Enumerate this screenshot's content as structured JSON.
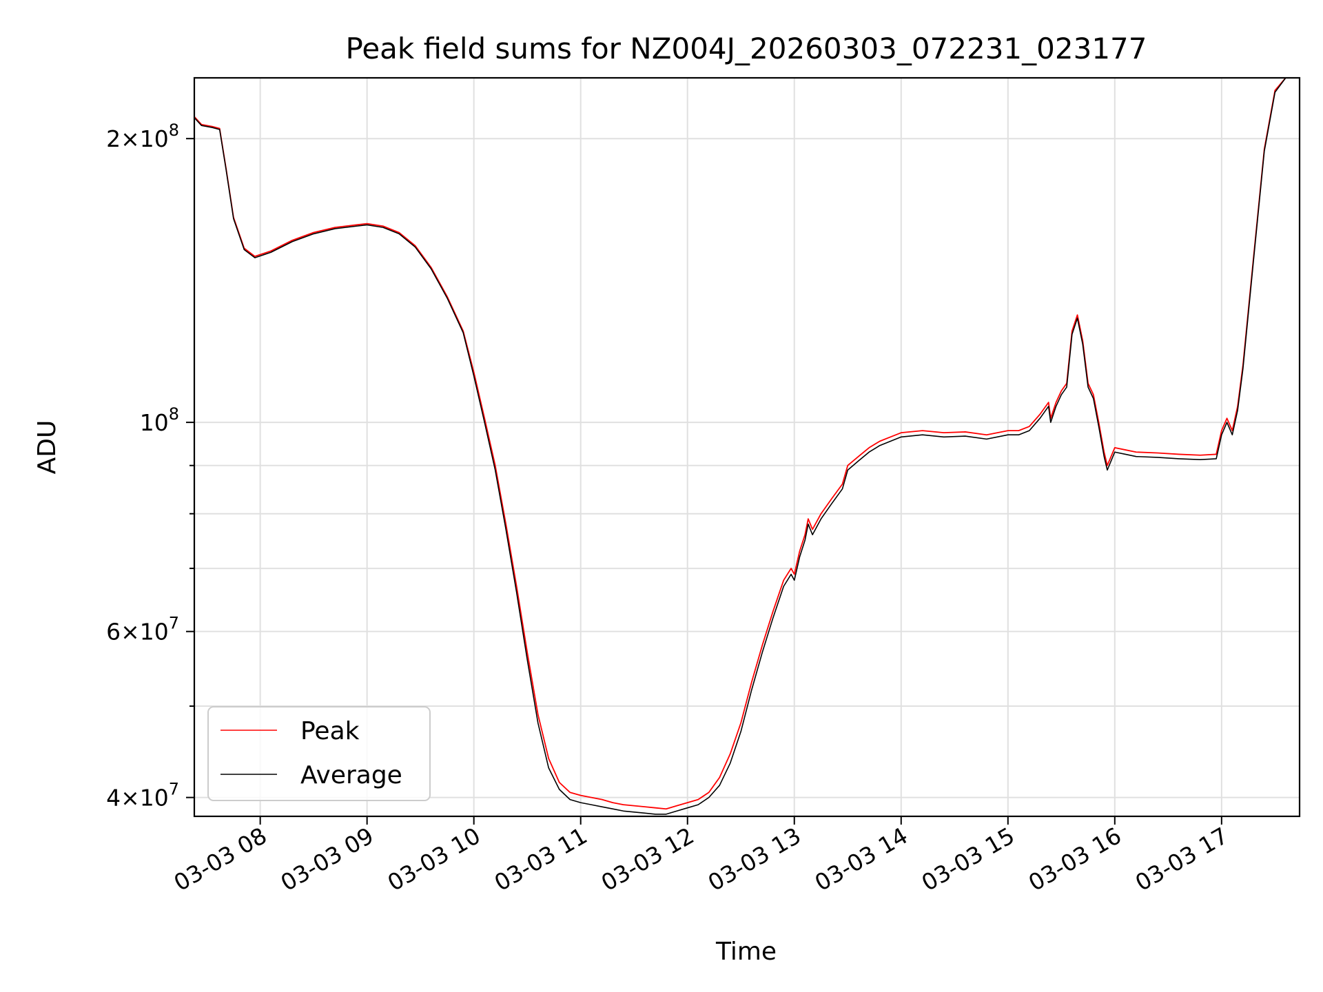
{
  "chart_data": {
    "type": "line",
    "title": "Peak field sums for NZ004J_20260303_072231_023177",
    "xlabel": "Time",
    "ylabel": "ADU",
    "yscale": "log",
    "xlim": [
      7.383,
      17.73
    ],
    "ylim": [
      38200000,
      232000000
    ],
    "grid": true,
    "legend_position": "lower-left",
    "x_unit": "hours (2026-03-03)",
    "x_ticks": [
      {
        "value": 8,
        "label": "03-03 08"
      },
      {
        "value": 9,
        "label": "03-03 09"
      },
      {
        "value": 10,
        "label": "03-03 10"
      },
      {
        "value": 11,
        "label": "03-03 11"
      },
      {
        "value": 12,
        "label": "03-03 12"
      },
      {
        "value": 13,
        "label": "03-03 13"
      },
      {
        "value": 14,
        "label": "03-03 14"
      },
      {
        "value": 15,
        "label": "03-03 15"
      },
      {
        "value": 16,
        "label": "03-03 16"
      },
      {
        "value": 17,
        "label": "03-03 17"
      }
    ],
    "y_major_ticks": [
      {
        "value": 40000000,
        "mantissa": "4",
        "exponent": "7"
      },
      {
        "value": 60000000,
        "mantissa": "6",
        "exponent": "7"
      },
      {
        "value": 100000000,
        "mantissa": "",
        "exponent": "8"
      },
      {
        "value": 200000000,
        "mantissa": "2",
        "exponent": "8"
      }
    ],
    "y_minor_ticks": [
      50000000,
      70000000,
      80000000,
      90000000
    ],
    "series": [
      {
        "name": "Peak",
        "color": "#ff0000",
        "x": [
          7.383,
          7.45,
          7.55,
          7.62,
          7.68,
          7.75,
          7.85,
          7.95,
          8.1,
          8.3,
          8.5,
          8.7,
          8.9,
          9.0,
          9.15,
          9.3,
          9.45,
          9.6,
          9.75,
          9.9,
          10.0,
          10.1,
          10.2,
          10.3,
          10.4,
          10.5,
          10.6,
          10.7,
          10.8,
          10.9,
          11.0,
          11.1,
          11.2,
          11.3,
          11.4,
          11.5,
          11.6,
          11.7,
          11.8,
          11.9,
          12.0,
          12.1,
          12.2,
          12.3,
          12.4,
          12.5,
          12.6,
          12.7,
          12.8,
          12.9,
          12.97,
          13.0,
          13.05,
          13.1,
          13.13,
          13.17,
          13.25,
          13.35,
          13.45,
          13.5,
          13.6,
          13.7,
          13.8,
          13.9,
          14.0,
          14.2,
          14.4,
          14.6,
          14.8,
          15.0,
          15.1,
          15.2,
          15.3,
          15.38,
          15.4,
          15.45,
          15.5,
          15.55,
          15.6,
          15.65,
          15.7,
          15.75,
          15.8,
          15.85,
          15.9,
          15.93,
          16.0,
          16.1,
          16.2,
          16.4,
          16.6,
          16.8,
          16.95,
          17.0,
          17.05,
          17.1,
          17.15,
          17.2,
          17.3,
          17.4,
          17.5,
          17.6,
          17.73
        ],
        "values": [
          211000000,
          207000000,
          206000000,
          205000000,
          186000000,
          165000000,
          153000000,
          150000000,
          152000000,
          156000000,
          159000000,
          161000000,
          162000000,
          162500000,
          161500000,
          159000000,
          154000000,
          146000000,
          136000000,
          125000000,
          113000000,
          101000000,
          90000000,
          78000000,
          67000000,
          57000000,
          49000000,
          44000000,
          41500000,
          40500000,
          40200000,
          40000000,
          39800000,
          39500000,
          39300000,
          39200000,
          39100000,
          39000000,
          38900000,
          39200000,
          39500000,
          39800000,
          40500000,
          42000000,
          44500000,
          48000000,
          53000000,
          58000000,
          63000000,
          68000000,
          70000000,
          69000000,
          73000000,
          76000000,
          79000000,
          77000000,
          80000000,
          83000000,
          86000000,
          90000000,
          92000000,
          94000000,
          95500000,
          96500000,
          97500000,
          98000000,
          97500000,
          97700000,
          97000000,
          98000000,
          98000000,
          99000000,
          102000000,
          105000000,
          101000000,
          105000000,
          108000000,
          110000000,
          125000000,
          130000000,
          122000000,
          110000000,
          107000000,
          100000000,
          93000000,
          90000000,
          94000000,
          93500000,
          93000000,
          92800000,
          92500000,
          92300000,
          92500000,
          98000000,
          101000000,
          98000000,
          104000000,
          115000000,
          150000000,
          195000000,
          225000000,
          232000000,
          232000000
        ]
      },
      {
        "name": "Average",
        "color": "#000000",
        "x": [
          7.383,
          7.45,
          7.55,
          7.62,
          7.68,
          7.75,
          7.85,
          7.95,
          8.1,
          8.3,
          8.5,
          8.7,
          8.9,
          9.0,
          9.15,
          9.3,
          9.45,
          9.6,
          9.75,
          9.9,
          10.0,
          10.1,
          10.2,
          10.3,
          10.4,
          10.5,
          10.6,
          10.7,
          10.8,
          10.9,
          11.0,
          11.1,
          11.2,
          11.3,
          11.4,
          11.5,
          11.6,
          11.7,
          11.8,
          11.9,
          12.0,
          12.1,
          12.2,
          12.3,
          12.4,
          12.5,
          12.6,
          12.7,
          12.8,
          12.9,
          12.97,
          13.0,
          13.05,
          13.1,
          13.13,
          13.17,
          13.25,
          13.35,
          13.45,
          13.5,
          13.6,
          13.7,
          13.8,
          13.9,
          14.0,
          14.2,
          14.4,
          14.6,
          14.8,
          15.0,
          15.1,
          15.2,
          15.3,
          15.38,
          15.4,
          15.45,
          15.5,
          15.55,
          15.6,
          15.65,
          15.7,
          15.75,
          15.8,
          15.85,
          15.9,
          15.93,
          16.0,
          16.1,
          16.2,
          16.4,
          16.6,
          16.8,
          16.95,
          17.0,
          17.05,
          17.1,
          17.15,
          17.2,
          17.3,
          17.4,
          17.5,
          17.6,
          17.73
        ],
        "values": [
          210500000,
          206500000,
          205500000,
          204500000,
          185500000,
          164500000,
          152500000,
          149500000,
          151500000,
          155500000,
          158500000,
          160500000,
          161500000,
          162000000,
          161000000,
          158500000,
          153500000,
          145500000,
          135500000,
          124500000,
          112000000,
          100000000,
          89000000,
          77000000,
          66000000,
          56000000,
          48000000,
          43000000,
          40800000,
          39800000,
          39500000,
          39300000,
          39100000,
          38900000,
          38700000,
          38600000,
          38500000,
          38400000,
          38400000,
          38700000,
          39000000,
          39300000,
          40000000,
          41200000,
          43500000,
          47000000,
          52000000,
          57000000,
          62000000,
          67000000,
          69000000,
          68000000,
          72000000,
          75000000,
          78000000,
          76000000,
          79000000,
          82000000,
          85000000,
          89000000,
          91000000,
          93000000,
          94500000,
          95500000,
          96500000,
          97000000,
          96500000,
          96700000,
          96000000,
          97000000,
          97000000,
          98000000,
          101000000,
          104000000,
          100000000,
          104000000,
          107000000,
          109000000,
          124000000,
          129000000,
          121000000,
          109000000,
          106000000,
          99000000,
          92000000,
          89000000,
          93000000,
          92500000,
          92000000,
          91800000,
          91500000,
          91300000,
          91500000,
          97000000,
          100000000,
          97000000,
          103000000,
          114000000,
          149000000,
          194000000,
          224000000,
          232000000,
          232000000
        ]
      }
    ]
  }
}
